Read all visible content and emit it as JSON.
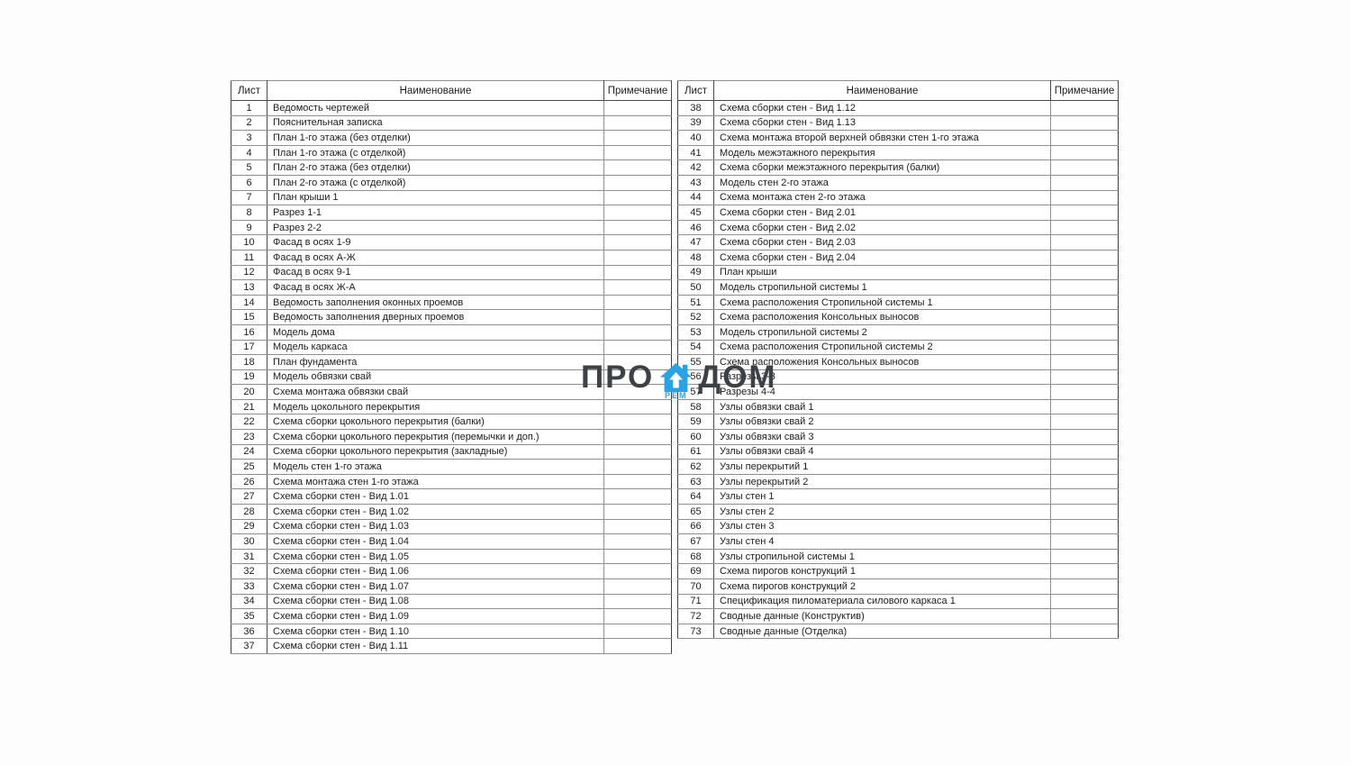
{
  "watermark": {
    "left_text": "ПРО",
    "right_text": "ДОМ",
    "sub_text": "РЕМ",
    "icon": "house-arrow-up-icon",
    "text_color": "#3c4148",
    "accent_color": "#2ba2e2"
  },
  "tables": [
    {
      "headers": [
        "Лист",
        "Наименование",
        "Примечание"
      ],
      "rows": [
        [
          "1",
          "Ведомость чертежей"
        ],
        [
          "2",
          "Пояснительная записка"
        ],
        [
          "3",
          "План 1-го этажа (без отделки)"
        ],
        [
          "4",
          "План 1-го этажа (с отделкой)"
        ],
        [
          "5",
          "План 2-го этажа (без отделки)"
        ],
        [
          "6",
          "План 2-го этажа (с отделкой)"
        ],
        [
          "7",
          "План крыши 1"
        ],
        [
          "8",
          "Разрез 1-1"
        ],
        [
          "9",
          "Разрез 2-2"
        ],
        [
          "10",
          "Фасад в осях 1-9"
        ],
        [
          "11",
          "Фасад в осях А-Ж"
        ],
        [
          "12",
          "Фасад в осях 9-1"
        ],
        [
          "13",
          "Фасад в осях Ж-А"
        ],
        [
          "14",
          "Ведомость заполнения оконных проемов"
        ],
        [
          "15",
          "Ведомость заполнения дверных проемов"
        ],
        [
          "16",
          "Модель дома"
        ],
        [
          "17",
          "Модель каркаса"
        ],
        [
          "18",
          "План  фундамента"
        ],
        [
          "19",
          "Модель обвязки свай"
        ],
        [
          "20",
          "Схема монтажа обвязки свай"
        ],
        [
          "21",
          "Модель цокольного перекрытия"
        ],
        [
          "22",
          "Схема сборки цокольного перекрытия (балки)"
        ],
        [
          "23",
          "Схема сборки цокольного перекрытия (перемычки и доп.)"
        ],
        [
          "24",
          "Схема сборки цокольного перекрытия (закладные)"
        ],
        [
          "25",
          "Модель стен 1-го этажа"
        ],
        [
          "26",
          "Схема монтажа стен 1-го этажа"
        ],
        [
          "27",
          "Схема сборки стен - Вид 1.01"
        ],
        [
          "28",
          "Схема сборки стен - Вид 1.02"
        ],
        [
          "29",
          "Схема сборки стен - Вид 1.03"
        ],
        [
          "30",
          "Схема сборки стен - Вид 1.04"
        ],
        [
          "31",
          "Схема сборки стен - Вид 1.05"
        ],
        [
          "32",
          "Схема сборки стен - Вид 1.06"
        ],
        [
          "33",
          "Схема сборки стен - Вид 1.07"
        ],
        [
          "34",
          "Схема сборки стен - Вид 1.08"
        ],
        [
          "35",
          "Схема сборки стен - Вид 1.09"
        ],
        [
          "36",
          "Схема сборки стен - Вид 1.10"
        ],
        [
          "37",
          "Схема сборки стен - Вид 1.11"
        ]
      ]
    },
    {
      "headers": [
        "Лист",
        "Наименование",
        "Примечание"
      ],
      "rows": [
        [
          "38",
          "Схема сборки стен - Вид 1.12"
        ],
        [
          "39",
          "Схема сборки стен - Вид 1.13"
        ],
        [
          "40",
          "Схема монтажа второй верхней обвязки стен 1-го этажа"
        ],
        [
          "41",
          "Модель межэтажного перекрытия"
        ],
        [
          "42",
          "Схема сборки межэтажного перекрытия (балки)"
        ],
        [
          "43",
          "Модель стен 2-го этажа"
        ],
        [
          "44",
          "Схема монтажа стен 2-го этажа"
        ],
        [
          "45",
          "Схема сборки стен - Вид 2.01"
        ],
        [
          "46",
          "Схема сборки стен - Вид 2.02"
        ],
        [
          "47",
          "Схема сборки стен - Вид 2.03"
        ],
        [
          "48",
          "Схема сборки стен - Вид 2.04"
        ],
        [
          "49",
          "План крыши"
        ],
        [
          "50",
          "Модель стропильной системы 1"
        ],
        [
          "51",
          "Схема расположения Стропильной системы 1"
        ],
        [
          "52",
          "Схема расположения Консольных выносов"
        ],
        [
          "53",
          "Модель стропильной системы 2"
        ],
        [
          "54",
          "Схема расположения Стропильной системы 2"
        ],
        [
          "55",
          "Схема расположения Консольных выносов"
        ],
        [
          "56",
          "Разрезы 3-3"
        ],
        [
          "57",
          "Разрезы 4-4"
        ],
        [
          "58",
          "Узлы обвязки свай 1"
        ],
        [
          "59",
          "Узлы обвязки свай 2"
        ],
        [
          "60",
          "Узлы обвязки свай 3"
        ],
        [
          "61",
          "Узлы обвязки свай 4"
        ],
        [
          "62",
          "Узлы перекрытий 1"
        ],
        [
          "63",
          "Узлы  перекрытий 2"
        ],
        [
          "64",
          "Узлы стен 1"
        ],
        [
          "65",
          "Узлы стен 2"
        ],
        [
          "66",
          "Узлы стен 3"
        ],
        [
          "67",
          "Узлы стен 4"
        ],
        [
          "68",
          "Узлы стропильной системы 1"
        ],
        [
          "69",
          "Схема пирогов конструкций 1"
        ],
        [
          "70",
          "Схема пирогов конструкций 2"
        ],
        [
          "71",
          "Спецификация пиломатериала силового каркаса 1"
        ],
        [
          "72",
          "Сводные данные (Конструктив)"
        ],
        [
          "73",
          "Сводные данные (Отделка)"
        ]
      ]
    }
  ]
}
